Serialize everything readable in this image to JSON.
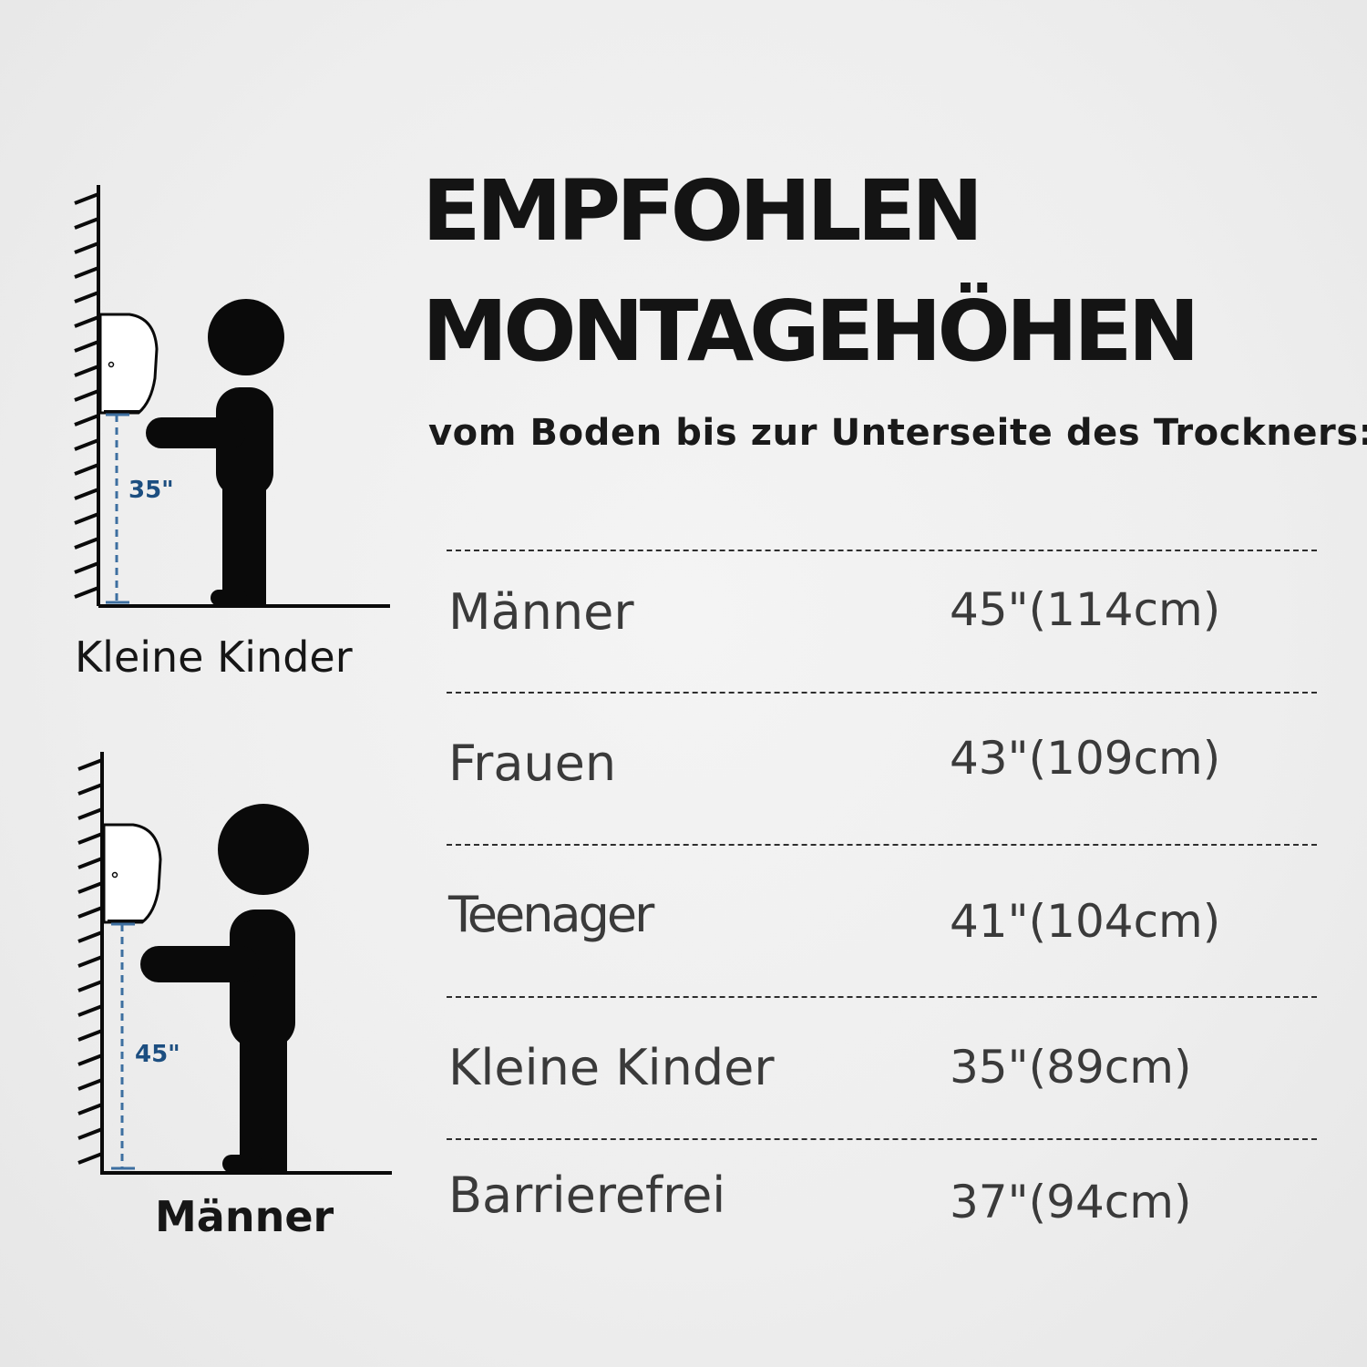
{
  "title": {
    "line1": "EMPFOHLEN",
    "line2": "MONTAGEHÖHEN"
  },
  "subtitle": "vom Boden bis zur Unterseite des Trockners:",
  "rows": [
    {
      "label": "Männer",
      "value": "45\"(114cm)"
    },
    {
      "label": "Frauen",
      "value": "43\"(109cm)"
    },
    {
      "label": "Teenager",
      "value": "41\"(104cm)"
    },
    {
      "label": "Kleine Kinder",
      "value": "35\"(89cm)"
    },
    {
      "label": "Barrierefrei",
      "value": "37\"(94cm)"
    }
  ],
  "figures": {
    "kids": {
      "measure": "35\"",
      "caption": "Kleine Kinder"
    },
    "men": {
      "measure": "45\"",
      "caption": "Männer"
    }
  },
  "colors": {
    "figure": "#0a0a0a",
    "measure_line": "#3d6fa0",
    "text": "#3a3a3a"
  }
}
